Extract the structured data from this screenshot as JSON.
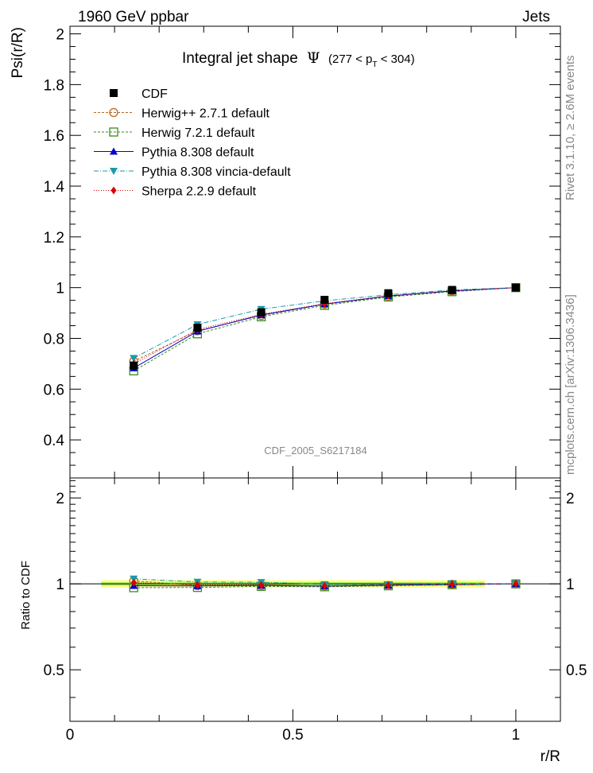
{
  "header": {
    "left": "1960 GeV ppbar",
    "right": "Jets"
  },
  "side_labels": {
    "rivet": "Rivet 3.1.10, ≥ 2.6M events",
    "mcplots": "mcplots.cern.ch [arXiv:1306.3436]"
  },
  "watermark": "CDF_2005_S6217184",
  "chart_data": {
    "type": "line",
    "title_main": "Integral jet shape",
    "title_symbol": "Ψ",
    "title_range_open": "(277 < p",
    "title_range_sub": "T",
    "title_range_close": " < 304)",
    "xlabel": "r/R",
    "ylabel": "Psi(r/R)",
    "ratio_ylabel": "Ratio to CDF",
    "xlim": [
      0,
      1.1
    ],
    "ylim": [
      0.25,
      2.03
    ],
    "ratio_ylim": [
      0.33,
      2.35
    ],
    "x": [
      0.143,
      0.286,
      0.429,
      0.571,
      0.714,
      0.857,
      1.0
    ],
    "xticks": [
      "0",
      "0.5",
      "1"
    ],
    "yticks": [
      "0.4",
      "0.6",
      "0.8",
      "1",
      "1.2",
      "1.4",
      "1.6",
      "1.8",
      "2"
    ],
    "ratio_yticks": [
      "0.5",
      "1",
      "2"
    ],
    "reference": {
      "name": "CDF",
      "values": [
        0.693,
        0.842,
        0.903,
        0.952,
        0.978,
        0.991,
        1.0
      ],
      "color": "#000000"
    },
    "series": [
      {
        "name": "Herwig++ 2.7.1 default",
        "values": [
          0.71,
          0.83,
          0.89,
          0.935,
          0.965,
          0.987,
          1.0
        ],
        "color": "#b5651d",
        "marker": "circle-open",
        "dash": "3,2"
      },
      {
        "name": "Herwig 7.2.1 default",
        "values": [
          0.672,
          0.818,
          0.885,
          0.93,
          0.963,
          0.984,
          1.0
        ],
        "color": "#3c8c1e",
        "marker": "square-open",
        "dash": "3,2"
      },
      {
        "name": "Pythia 8.308 default",
        "values": [
          0.683,
          0.828,
          0.892,
          0.935,
          0.967,
          0.987,
          1.0
        ],
        "color": "#0000cc",
        "marker": "triangle-up",
        "dash": ""
      },
      {
        "name": "Pythia 8.308 vincia-default",
        "values": [
          0.722,
          0.855,
          0.915,
          0.948,
          0.972,
          0.991,
          1.0
        ],
        "color": "#1a9aaa",
        "marker": "triangle-down",
        "dash": "6,2,1,2"
      },
      {
        "name": "Sherpa 2.2.9 default",
        "values": [
          0.7,
          0.835,
          0.895,
          0.937,
          0.968,
          0.988,
          1.0
        ],
        "color": "#dd0000",
        "marker": "diamond",
        "dash": "1,2"
      }
    ],
    "grid": false,
    "legend_position": "top-left"
  }
}
